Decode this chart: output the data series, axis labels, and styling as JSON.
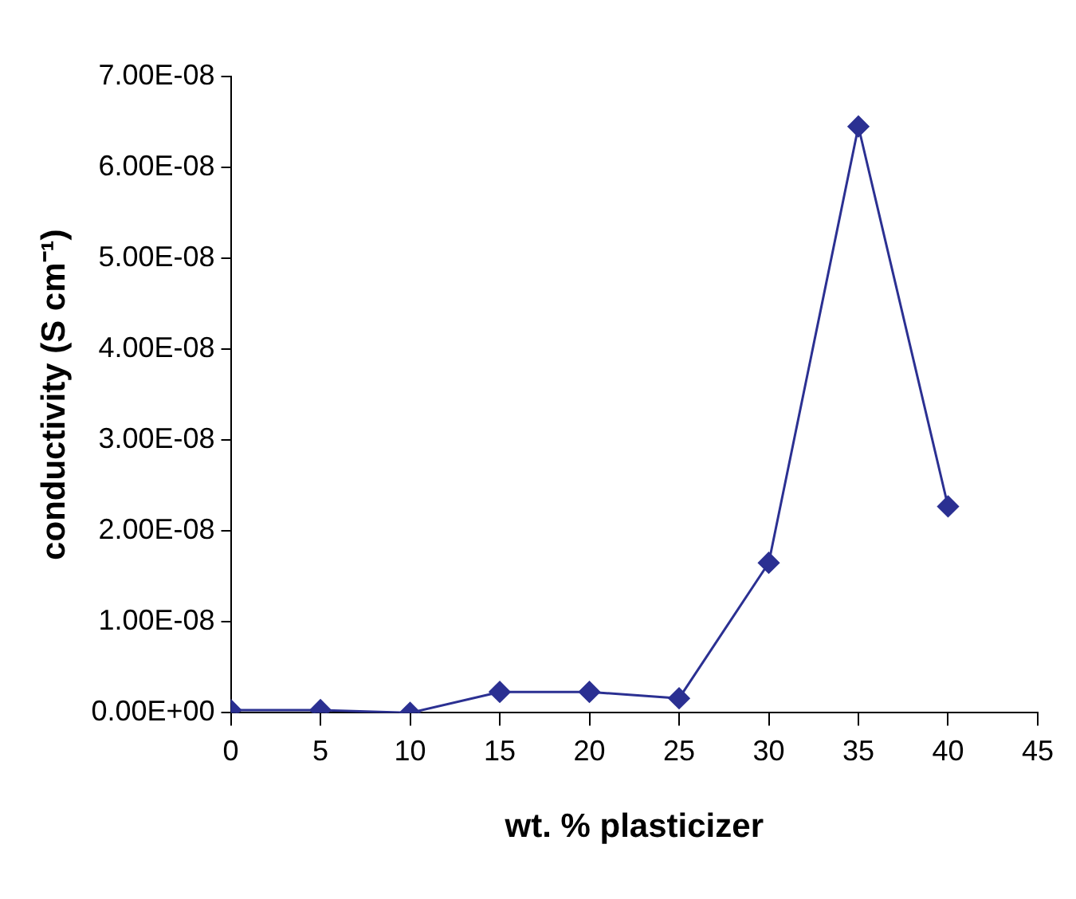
{
  "chart_data": {
    "type": "line",
    "xlabel": "wt. % plasticizer",
    "ylabel": "conductivity (S cm⁻¹)",
    "x": [
      0,
      5,
      10,
      15,
      20,
      25,
      30,
      35,
      40
    ],
    "series": [
      {
        "color": "#2b3092",
        "values": [
          3e-10,
          3e-10,
          0,
          2.3e-09,
          2.3e-09,
          1.6e-09,
          1.65e-08,
          6.45e-08,
          2.27e-08
        ]
      }
    ],
    "xlim": [
      0,
      45
    ],
    "xticks": [
      0,
      5,
      10,
      15,
      20,
      25,
      30,
      35,
      40,
      45
    ],
    "ylim": [
      0,
      7e-08
    ],
    "yticks": [
      {
        "value": 0,
        "label": "0.00E+00"
      },
      {
        "value": 1e-08,
        "label": "1.00E-08"
      },
      {
        "value": 2e-08,
        "label": "2.00E-08"
      },
      {
        "value": 3e-08,
        "label": "3.00E-08"
      },
      {
        "value": 4e-08,
        "label": "4.00E-08"
      },
      {
        "value": 5e-08,
        "label": "5.00E-08"
      },
      {
        "value": 6e-08,
        "label": "6.00E-08"
      },
      {
        "value": 7e-08,
        "label": "7.00E-08"
      }
    ],
    "grid": false,
    "legend": false,
    "marker": "diamond",
    "line_style": "solid"
  }
}
